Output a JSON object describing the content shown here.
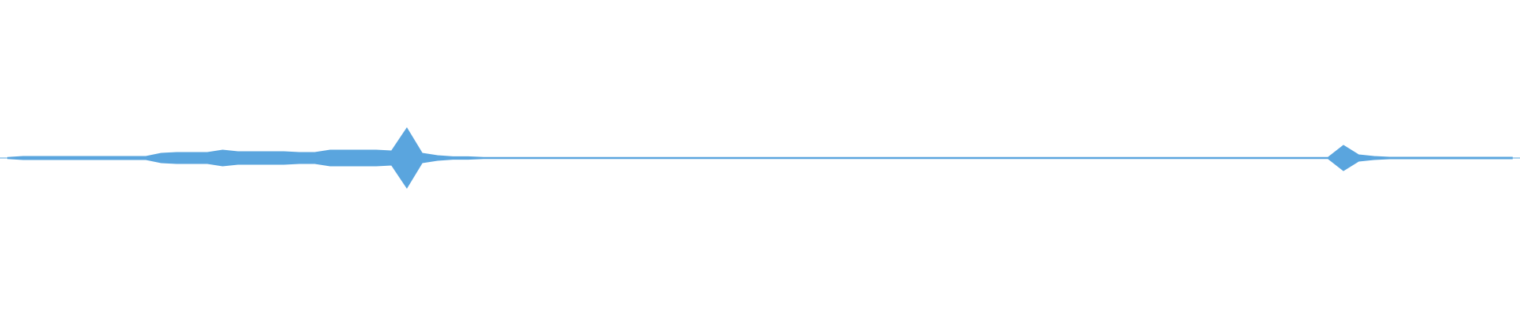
{
  "chart_data": {
    "type": "waveform",
    "color": "#5aa5de",
    "values": [
      0.004,
      0.01,
      0.01,
      0.01,
      0.01,
      0.01,
      0.01,
      0.01,
      0.01,
      0.01,
      0.03,
      0.035,
      0.035,
      0.035,
      0.05,
      0.04,
      0.04,
      0.04,
      0.04,
      0.035,
      0.035,
      0.05,
      0.05,
      0.05,
      0.05,
      0.045,
      0.19,
      0.03,
      0.015,
      0.008,
      0.008,
      0.004,
      0.004,
      0.004,
      0.004,
      0.004,
      0.004,
      0.004,
      0.004,
      0.004,
      0.004,
      0.004,
      0.004,
      0.004,
      0.004,
      0.004,
      0.004,
      0.004,
      0.004,
      0.004,
      0.004,
      0.004,
      0.004,
      0.004,
      0.004,
      0.004,
      0.004,
      0.004,
      0.004,
      0.004,
      0.004,
      0.004,
      0.004,
      0.004,
      0.004,
      0.004,
      0.004,
      0.004,
      0.004,
      0.004,
      0.004,
      0.004,
      0.004,
      0.004,
      0.004,
      0.004,
      0.004,
      0.004,
      0.004,
      0.004,
      0.004,
      0.004,
      0.004,
      0.004,
      0.004,
      0.004,
      0.004,
      0.08,
      0.02,
      0.01,
      0.005,
      0.005,
      0.005,
      0.005,
      0.005,
      0.005,
      0.005,
      0.005,
      0.005
    ]
  }
}
